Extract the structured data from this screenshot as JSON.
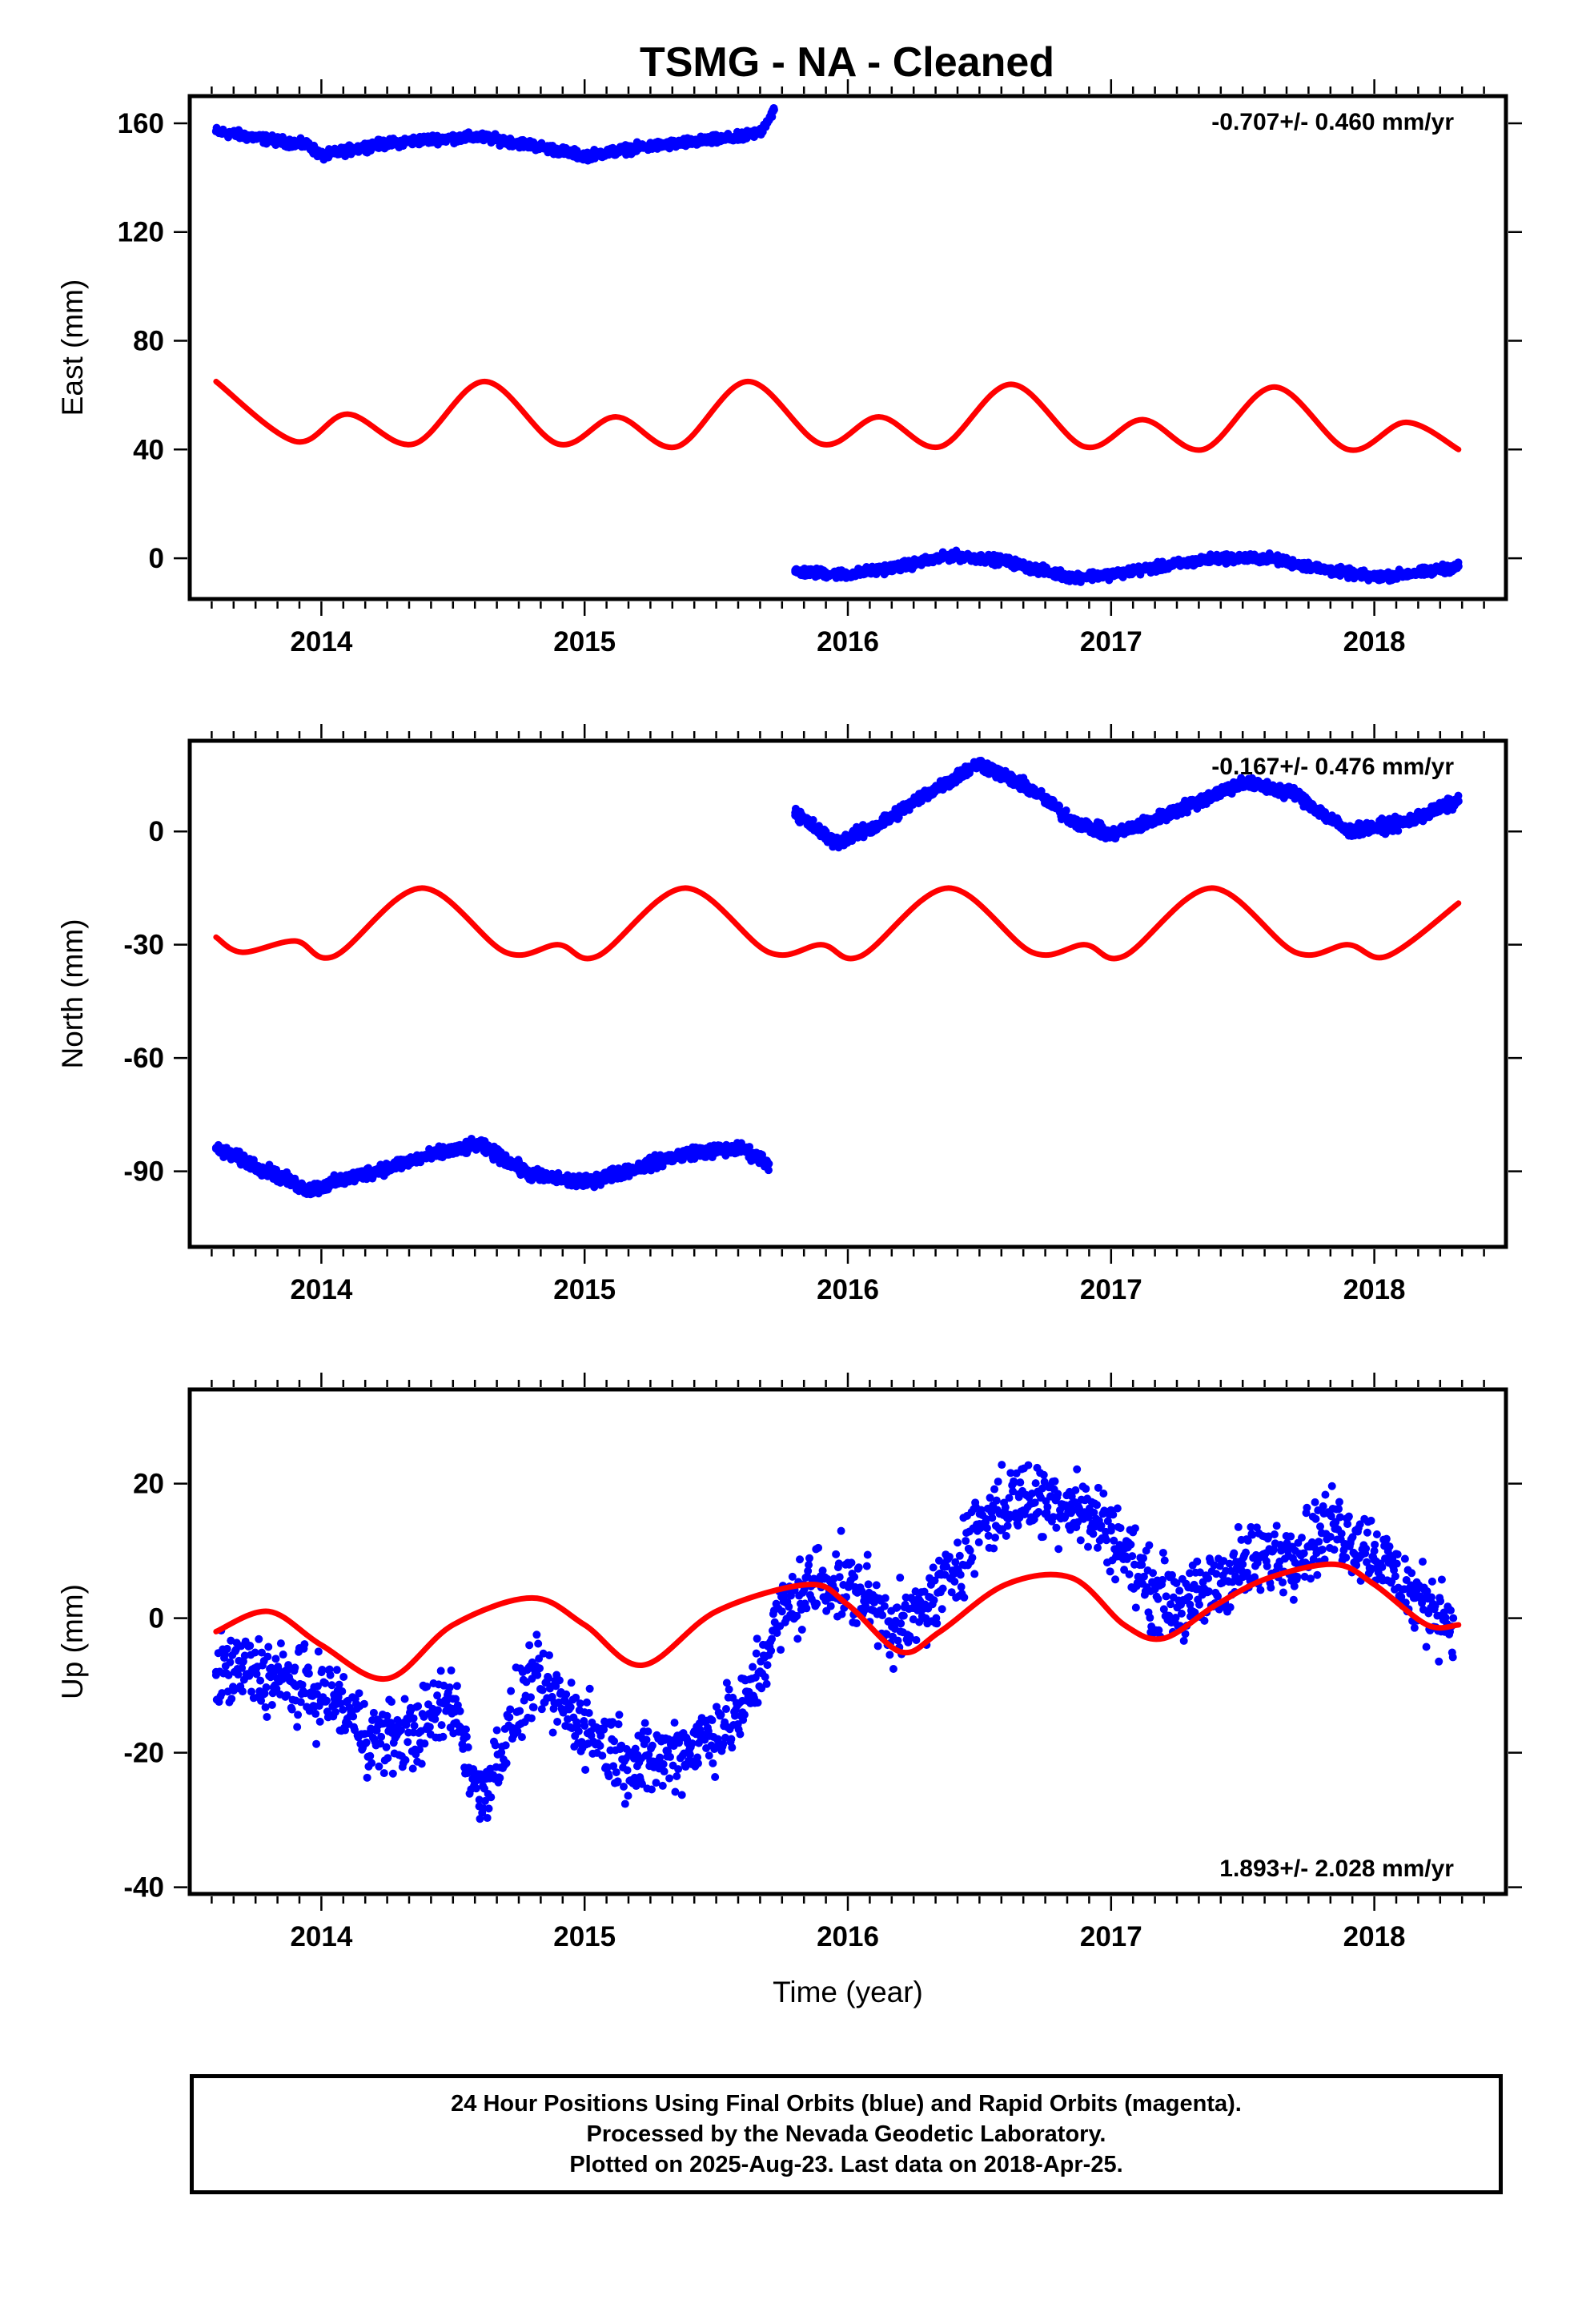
{
  "title": "TSMG  - NA - Cleaned",
  "footer": {
    "line1": "24 Hour Positions Using Final Orbits (blue) and Rapid Orbits (magenta).",
    "line2": "Processed by the Nevada Geodetic Laboratory.",
    "line3": "Plotted on 2025-Aug-23. Last data on 2018-Apr-25."
  },
  "chart_data": [
    {
      "type": "scatter",
      "ylabel": "East (mm)",
      "xlabel": "",
      "xlim": [
        2013.5,
        2018.5
      ],
      "ylim": [
        -15,
        170
      ],
      "xticks": [
        "2014",
        "2015",
        "2016",
        "2017",
        "2018"
      ],
      "yticks": [
        "0",
        "40",
        "80",
        "120",
        "160"
      ],
      "rate_label": "-0.707+/- 0.460 mm/yr",
      "rate_position": "top-right",
      "colors": {
        "points": "#0000ff",
        "model": "#ff0000"
      },
      "series": [
        {
          "kind": "points",
          "x": [
            2013.6,
            2013.8,
            2013.95,
            2014.0,
            2014.2,
            2014.4,
            2014.6,
            2014.8,
            2015.0,
            2015.2,
            2015.4,
            2015.6,
            2015.67,
            2015.72
          ],
          "y": [
            157,
            154,
            152,
            148,
            152,
            154,
            155,
            152,
            148,
            151,
            153,
            155,
            157,
            165
          ]
        },
        {
          "kind": "points",
          "x": [
            2015.8,
            2016.0,
            2016.2,
            2016.4,
            2016.6,
            2016.67,
            2016.85,
            2017.0,
            2017.2,
            2017.4,
            2017.6,
            2017.8,
            2018.0,
            2018.2,
            2018.32
          ],
          "y": [
            -5,
            -6,
            -3,
            1,
            -1,
            -3,
            -7,
            -6,
            -3,
            0,
            0,
            -4,
            -7,
            -5,
            -3
          ]
        },
        {
          "kind": "model",
          "x": [
            2013.6,
            2013.9,
            2014.1,
            2014.35,
            2014.62,
            2014.9,
            2015.12,
            2015.35,
            2015.62,
            2015.9,
            2016.12,
            2016.35,
            2016.62,
            2016.9,
            2017.12,
            2017.35,
            2017.62,
            2017.9,
            2018.12,
            2018.32
          ],
          "y": [
            65,
            43,
            53,
            42,
            65,
            42,
            52,
            41,
            65,
            42,
            52,
            41,
            64,
            41,
            51,
            40,
            63,
            40,
            50,
            40
          ]
        }
      ]
    },
    {
      "type": "scatter",
      "ylabel": "North (mm)",
      "xlabel": "",
      "xlim": [
        2013.5,
        2018.5
      ],
      "ylim": [
        -110,
        24
      ],
      "xticks": [
        "2014",
        "2015",
        "2016",
        "2017",
        "2018"
      ],
      "yticks": [
        "0",
        "-30",
        "-60",
        "-90"
      ],
      "rate_label": "-0.167+/- 0.476 mm/yr",
      "rate_position": "top-right",
      "colors": {
        "points": "#0000ff",
        "model": "#ff0000"
      },
      "series": [
        {
          "kind": "points",
          "x": [
            2013.6,
            2013.8,
            2013.95,
            2014.0,
            2014.2,
            2014.4,
            2014.6,
            2014.8,
            2015.0,
            2015.2,
            2015.4,
            2015.6,
            2015.7
          ],
          "y": [
            -84,
            -90,
            -95,
            -94,
            -90,
            -86,
            -83,
            -91,
            -93,
            -89,
            -85,
            -84,
            -88
          ]
        },
        {
          "kind": "points",
          "x": [
            2015.8,
            2015.95,
            2016.1,
            2016.3,
            2016.5,
            2016.7,
            2016.85,
            2017.0,
            2017.2,
            2017.5,
            2017.7,
            2017.9,
            2018.1,
            2018.32
          ],
          "y": [
            5,
            -3,
            1,
            10,
            18,
            11,
            3,
            -1,
            4,
            13,
            10,
            0,
            2,
            8
          ]
        },
        {
          "kind": "model",
          "x": [
            2013.6,
            2013.7,
            2013.9,
            2014.05,
            2014.38,
            2014.7,
            2014.9,
            2015.05,
            2015.38,
            2015.7,
            2015.9,
            2016.05,
            2016.38,
            2016.7,
            2016.9,
            2017.05,
            2017.38,
            2017.7,
            2017.9,
            2018.05,
            2018.32
          ],
          "y": [
            -28,
            -32,
            -29,
            -33,
            -15,
            -32,
            -30,
            -33,
            -15,
            -32,
            -30,
            -33,
            -15,
            -32,
            -30,
            -33,
            -15,
            -32,
            -30,
            -33,
            -19
          ]
        }
      ]
    },
    {
      "type": "scatter",
      "ylabel": "Up (mm)",
      "xlabel": "Time (year)",
      "xlim": [
        2013.5,
        2018.5
      ],
      "ylim": [
        -41,
        34
      ],
      "xticks": [
        "2014",
        "2015",
        "2016",
        "2017",
        "2018"
      ],
      "yticks": [
        "20",
        "0",
        "-20",
        "-40"
      ],
      "rate_label": "1.893+/- 2.028 mm/yr",
      "rate_position": "bottom-right",
      "colors": {
        "points": "#0000ff",
        "model": "#ff0000"
      },
      "series": [
        {
          "kind": "points",
          "x": [
            2013.6,
            2013.75,
            2013.9,
            2014.05,
            2014.2,
            2014.35,
            2014.5,
            2014.6,
            2014.8,
            2015.0,
            2015.2,
            2015.4,
            2015.6,
            2015.75,
            2015.9,
            2016.05,
            2016.2,
            2016.35,
            2016.5,
            2016.65,
            2016.85,
            2017.0,
            2017.15,
            2017.3,
            2017.5,
            2017.7,
            2017.85,
            2018.0,
            2018.15,
            2018.3
          ],
          "y": [
            -8,
            -8,
            -10,
            -12,
            -18,
            -17,
            -12,
            -27,
            -9,
            -16,
            -22,
            -19,
            -14,
            1,
            6,
            4,
            -2,
            4,
            14,
            18,
            17,
            13,
            4,
            2,
            8,
            10,
            14,
            10,
            3,
            0
          ]
        },
        {
          "kind": "model",
          "x": [
            2013.6,
            2013.8,
            2014.0,
            2014.25,
            2014.5,
            2014.8,
            2015.0,
            2015.22,
            2015.5,
            2015.85,
            2016.0,
            2016.2,
            2016.35,
            2016.6,
            2016.85,
            2017.05,
            2017.2,
            2017.4,
            2017.6,
            2017.85,
            2018.0,
            2018.2,
            2018.32
          ],
          "y": [
            -2,
            1,
            -4,
            -9,
            -1,
            3,
            -1,
            -7,
            1,
            5,
            2,
            -5,
            -2,
            5,
            6,
            -1,
            -3,
            2,
            6,
            8,
            5,
            -1,
            -1
          ]
        }
      ]
    }
  ]
}
